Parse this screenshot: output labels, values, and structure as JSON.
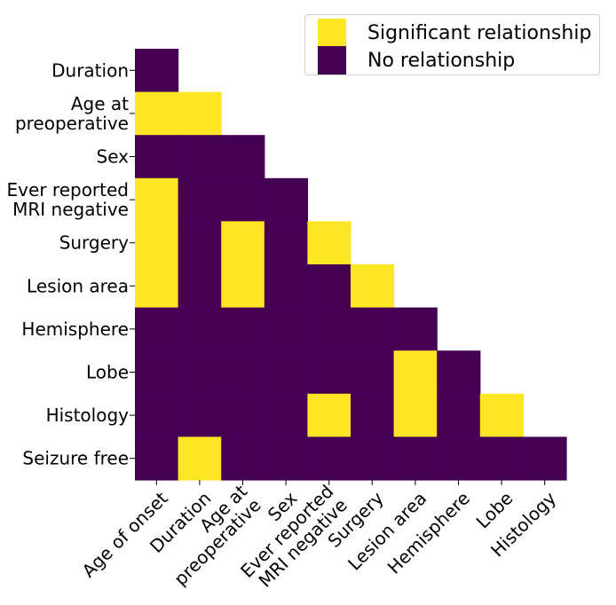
{
  "chart_data": {
    "type": "heatmap",
    "colors": {
      "significant": "#fde725",
      "none": "#440154"
    },
    "legend": {
      "placement": "top-right",
      "entries": [
        {
          "label": "Significant relationship",
          "value": 1
        },
        {
          "label": "No relationship",
          "value": 0
        }
      ]
    },
    "rows": [
      "Duration",
      "Age at\npreoperative",
      "Sex",
      "Ever reported\nMRI negative",
      "Surgery",
      "Lesion area",
      "Hemisphere",
      "Lobe",
      "Histology",
      "Seizure free"
    ],
    "columns": [
      "Age of onset",
      "Duration",
      "Age at\npreoperative",
      "Sex",
      "Ever reported\nMRI negative",
      "Surgery",
      "Lesion area",
      "Hemisphere",
      "Lobe",
      "Histology"
    ],
    "matrix": [
      [
        0
      ],
      [
        1,
        1
      ],
      [
        0,
        0,
        0
      ],
      [
        1,
        0,
        0,
        0
      ],
      [
        1,
        0,
        1,
        0,
        1
      ],
      [
        1,
        0,
        1,
        0,
        0,
        1
      ],
      [
        0,
        0,
        0,
        0,
        0,
        0,
        0
      ],
      [
        0,
        0,
        0,
        0,
        0,
        0,
        1,
        0
      ],
      [
        0,
        0,
        0,
        0,
        1,
        0,
        1,
        0,
        1
      ],
      [
        0,
        1,
        0,
        0,
        0,
        0,
        0,
        0,
        0,
        0
      ]
    ]
  }
}
